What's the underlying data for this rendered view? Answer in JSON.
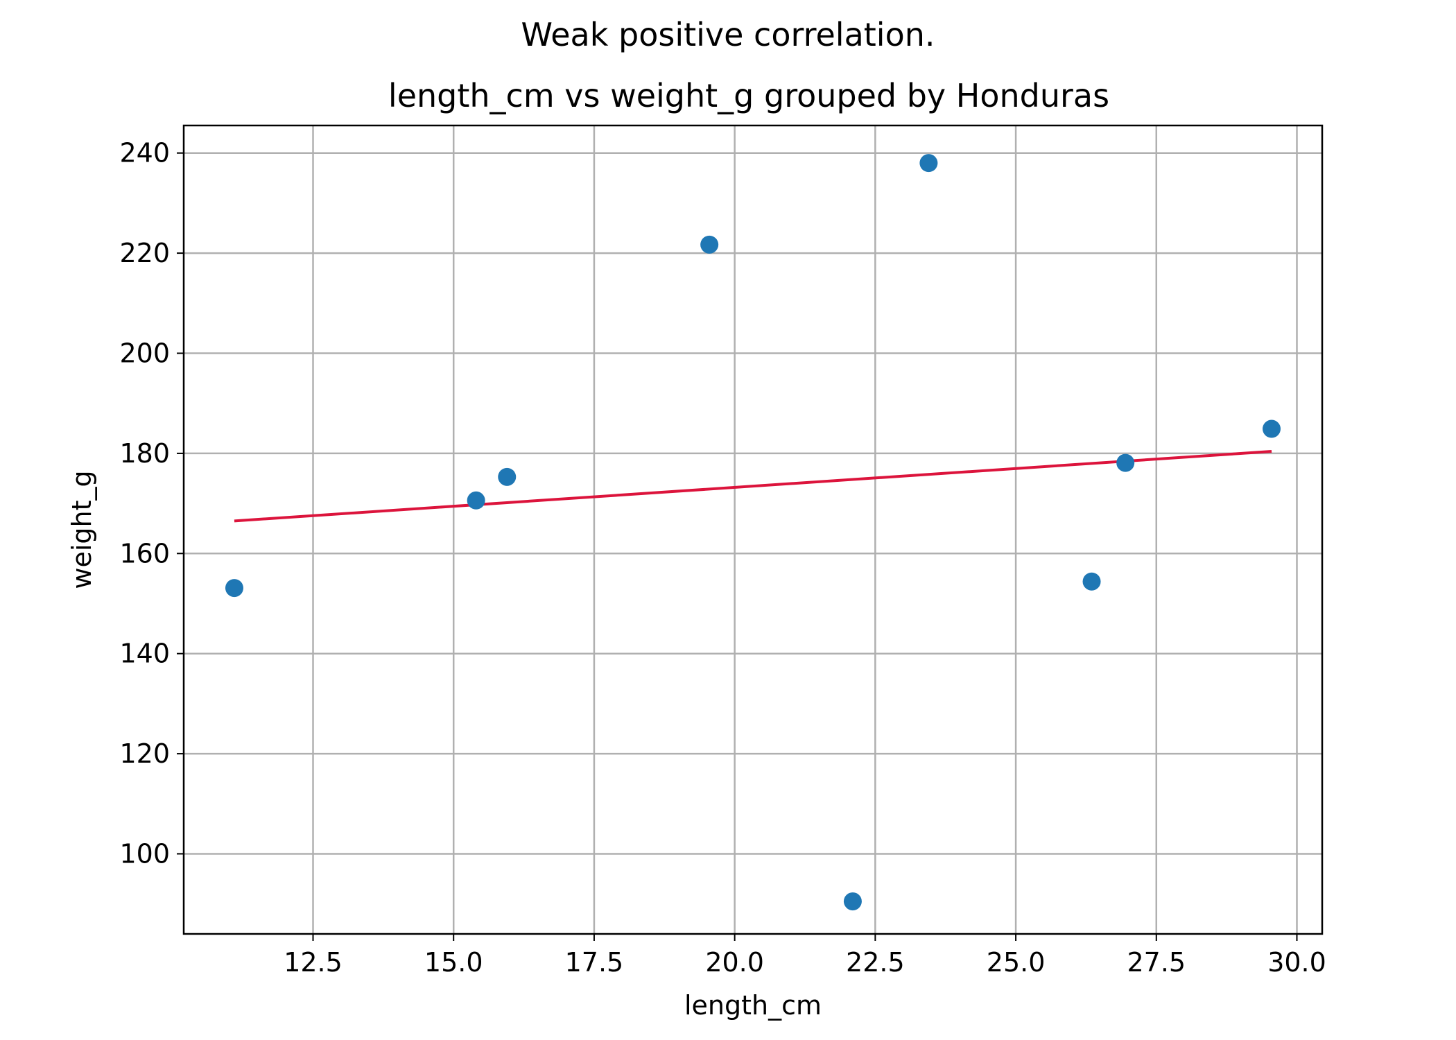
{
  "chart_data": {
    "type": "scatter",
    "suptitle": "Weak positive correlation.",
    "title": "length_cm vs weight_g grouped by Honduras",
    "xlabel": "length_cm",
    "ylabel": "weight_g",
    "xlim": [
      10.2,
      30.45
    ],
    "ylim": [
      84,
      245.5
    ],
    "xticks": [
      12.5,
      15.0,
      17.5,
      20.0,
      22.5,
      25.0,
      27.5,
      30.0
    ],
    "xtick_labels": [
      "12.5",
      "15.0",
      "17.5",
      "20.0",
      "22.5",
      "25.0",
      "27.5",
      "30.0"
    ],
    "yticks": [
      100,
      120,
      140,
      160,
      180,
      200,
      220,
      240
    ],
    "ytick_labels": [
      "100",
      "120",
      "140",
      "160",
      "180",
      "200",
      "220",
      "240"
    ],
    "grid": true,
    "series": [
      {
        "points": [
          {
            "x": 11.1,
            "y": 153.1
          },
          {
            "x": 15.4,
            "y": 170.6
          },
          {
            "x": 15.95,
            "y": 175.3
          },
          {
            "x": 19.55,
            "y": 221.7
          },
          {
            "x": 22.1,
            "y": 90.5
          },
          {
            "x": 23.45,
            "y": 238.0
          },
          {
            "x": 26.35,
            "y": 154.4
          },
          {
            "x": 26.95,
            "y": 178.1
          },
          {
            "x": 29.55,
            "y": 184.9
          }
        ],
        "color": "#1f77b4"
      }
    ],
    "trendline": {
      "x": [
        11.1,
        29.55
      ],
      "y": [
        166.5,
        180.4
      ],
      "color": "#dc143c"
    }
  }
}
